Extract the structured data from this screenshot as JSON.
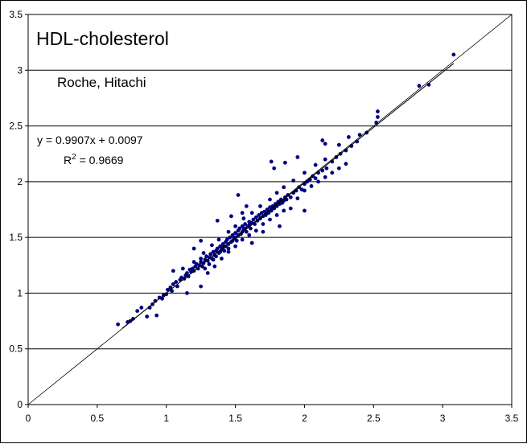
{
  "chart_data": {
    "type": "scatter",
    "title": "HDL-cholesterol",
    "subtitle": "Roche, Hitachi",
    "xlabel": "",
    "ylabel": "",
    "xlim": [
      0,
      3.5
    ],
    "ylim": [
      0,
      3.5
    ],
    "x_ticks": [
      "0",
      "0.5",
      "1",
      "1.5",
      "2",
      "2.5",
      "3",
      "3.5"
    ],
    "y_ticks": [
      "0",
      "0.5",
      "1",
      "1.5",
      "2",
      "2.5",
      "3",
      "3.5"
    ],
    "grid": "horizontal",
    "marker_color": "#000080",
    "trendline": {
      "equation": "y = 0.9907x + 0.0097",
      "r2_prefix": "R",
      "r2_exp": "2",
      "r2_value": " = 0.9669",
      "slope": 0.9907,
      "intercept": 0.0097,
      "x_range": [
        0.68,
        3.08
      ]
    },
    "identity_line": {
      "from": [
        0,
        0
      ],
      "to": [
        3.5,
        3.5
      ]
    },
    "series": [
      {
        "values": [
          [
            0.65,
            0.72
          ],
          [
            0.72,
            0.74
          ],
          [
            0.74,
            0.75
          ],
          [
            0.76,
            0.77
          ],
          [
            0.79,
            0.84
          ],
          [
            0.82,
            0.87
          ],
          [
            0.86,
            0.79
          ],
          [
            0.88,
            0.87
          ],
          [
            0.9,
            0.9
          ],
          [
            0.92,
            0.93
          ],
          [
            0.93,
            0.8
          ],
          [
            0.95,
            0.96
          ],
          [
            0.97,
            0.95
          ],
          [
            0.98,
            0.98
          ],
          [
            1.0,
            0.99
          ],
          [
            1.01,
            1.03
          ],
          [
            1.03,
            1.05
          ],
          [
            1.04,
            1.02
          ],
          [
            1.05,
            1.08
          ],
          [
            1.07,
            1.1
          ],
          [
            1.08,
            1.06
          ],
          [
            1.1,
            1.12
          ],
          [
            1.11,
            1.14
          ],
          [
            1.13,
            1.13
          ],
          [
            1.14,
            1.16
          ],
          [
            1.15,
            1.18
          ],
          [
            1.16,
            1.15
          ],
          [
            1.17,
            1.21
          ],
          [
            1.18,
            1.19
          ],
          [
            1.19,
            1.22
          ],
          [
            1.2,
            1.2
          ],
          [
            1.21,
            1.24
          ],
          [
            1.22,
            1.26
          ],
          [
            1.23,
            1.22
          ],
          [
            1.24,
            1.25
          ],
          [
            1.25,
            1.28
          ],
          [
            1.25,
            1.31
          ],
          [
            1.26,
            1.24
          ],
          [
            1.27,
            1.27
          ],
          [
            1.28,
            1.3
          ],
          [
            1.28,
            1.22
          ],
          [
            1.29,
            1.33
          ],
          [
            1.3,
            1.29
          ],
          [
            1.31,
            1.32
          ],
          [
            1.31,
            1.26
          ],
          [
            1.32,
            1.35
          ],
          [
            1.33,
            1.31
          ],
          [
            1.34,
            1.37
          ],
          [
            1.34,
            1.3
          ],
          [
            1.35,
            1.34
          ],
          [
            1.36,
            1.38
          ],
          [
            1.36,
            1.33
          ],
          [
            1.37,
            1.4
          ],
          [
            1.38,
            1.36
          ],
          [
            1.39,
            1.42
          ],
          [
            1.39,
            1.37
          ],
          [
            1.4,
            1.39
          ],
          [
            1.41,
            1.44
          ],
          [
            1.41,
            1.41
          ],
          [
            1.42,
            1.38
          ],
          [
            1.43,
            1.46
          ],
          [
            1.43,
            1.42
          ],
          [
            1.44,
            1.48
          ],
          [
            1.45,
            1.44
          ],
          [
            1.45,
            1.4
          ],
          [
            1.46,
            1.5
          ],
          [
            1.47,
            1.46
          ],
          [
            1.48,
            1.52
          ],
          [
            1.48,
            1.47
          ],
          [
            1.49,
            1.49
          ],
          [
            1.5,
            1.54
          ],
          [
            1.5,
            1.5
          ],
          [
            1.51,
            1.47
          ],
          [
            1.52,
            1.56
          ],
          [
            1.52,
            1.52
          ],
          [
            1.53,
            1.58
          ],
          [
            1.54,
            1.53
          ],
          [
            1.55,
            1.6
          ],
          [
            1.55,
            1.55
          ],
          [
            1.56,
            1.57
          ],
          [
            1.57,
            1.62
          ],
          [
            1.57,
            1.58
          ],
          [
            1.58,
            1.55
          ],
          [
            1.59,
            1.6
          ],
          [
            1.6,
            1.64
          ],
          [
            1.6,
            1.61
          ],
          [
            1.61,
            1.58
          ],
          [
            1.62,
            1.63
          ],
          [
            1.63,
            1.66
          ],
          [
            1.64,
            1.62
          ],
          [
            1.65,
            1.68
          ],
          [
            1.66,
            1.65
          ],
          [
            1.67,
            1.7
          ],
          [
            1.68,
            1.67
          ],
          [
            1.69,
            1.72
          ],
          [
            1.7,
            1.69
          ],
          [
            1.71,
            1.73
          ],
          [
            1.72,
            1.7
          ],
          [
            1.73,
            1.75
          ],
          [
            1.74,
            1.72
          ],
          [
            1.75,
            1.77
          ],
          [
            1.76,
            1.74
          ],
          [
            1.77,
            1.78
          ],
          [
            1.78,
            1.76
          ],
          [
            1.79,
            1.8
          ],
          [
            1.8,
            1.78
          ],
          [
            1.81,
            1.82
          ],
          [
            1.82,
            1.8
          ],
          [
            1.83,
            1.84
          ],
          [
            1.84,
            1.81
          ],
          [
            1.85,
            1.83
          ],
          [
            1.86,
            1.86
          ],
          [
            1.87,
            1.84
          ],
          [
            1.88,
            1.88
          ],
          [
            1.9,
            1.86
          ],
          [
            1.92,
            1.9
          ],
          [
            1.94,
            1.92
          ],
          [
            1.96,
            1.95
          ],
          [
            1.98,
            1.93
          ],
          [
            2.0,
            1.98
          ],
          [
            2.02,
            2.0
          ],
          [
            2.04,
            2.02
          ],
          [
            2.06,
            2.05
          ],
          [
            2.08,
            2.03
          ],
          [
            2.1,
            2.08
          ],
          [
            2.13,
            2.1
          ],
          [
            2.16,
            2.12
          ],
          [
            2.2,
            2.18
          ],
          [
            2.23,
            2.22
          ],
          [
            2.26,
            2.25
          ],
          [
            2.3,
            2.28
          ],
          [
            2.34,
            2.32
          ],
          [
            2.38,
            2.36
          ],
          [
            2.45,
            2.44
          ],
          [
            2.52,
            2.53
          ],
          [
            2.53,
            2.58
          ],
          [
            2.53,
            2.63
          ],
          [
            2.83,
            2.86
          ],
          [
            2.9,
            2.87
          ],
          [
            3.08,
            3.14
          ],
          [
            1.3,
            1.18
          ],
          [
            1.35,
            1.24
          ],
          [
            1.4,
            1.31
          ],
          [
            1.45,
            1.37
          ],
          [
            1.5,
            1.42
          ],
          [
            1.55,
            1.48
          ],
          [
            1.6,
            1.52
          ],
          [
            1.65,
            1.56
          ],
          [
            1.7,
            1.62
          ],
          [
            1.75,
            1.66
          ],
          [
            1.8,
            1.7
          ],
          [
            1.85,
            1.74
          ],
          [
            1.9,
            1.76
          ],
          [
            1.95,
            1.85
          ],
          [
            2.0,
            1.92
          ],
          [
            2.05,
            1.96
          ],
          [
            2.1,
            2.0
          ],
          [
            2.15,
            2.04
          ],
          [
            2.2,
            2.08
          ],
          [
            2.25,
            2.12
          ],
          [
            2.3,
            2.16
          ],
          [
            1.12,
            1.22
          ],
          [
            1.2,
            1.28
          ],
          [
            1.27,
            1.36
          ],
          [
            1.33,
            1.43
          ],
          [
            1.38,
            1.48
          ],
          [
            1.45,
            1.55
          ],
          [
            1.5,
            1.6
          ],
          [
            1.56,
            1.67
          ],
          [
            1.62,
            1.72
          ],
          [
            1.68,
            1.78
          ],
          [
            1.75,
            1.84
          ],
          [
            1.8,
            1.9
          ],
          [
            1.85,
            1.95
          ],
          [
            1.92,
            2.01
          ],
          [
            2.0,
            2.08
          ],
          [
            2.08,
            2.15
          ],
          [
            2.15,
            2.2
          ],
          [
            2.25,
            2.33
          ],
          [
            2.32,
            2.4
          ],
          [
            2.4,
            2.42
          ],
          [
            1.76,
            2.18
          ],
          [
            1.78,
            2.12
          ],
          [
            1.86,
            2.17
          ],
          [
            1.95,
            2.22
          ],
          [
            2.13,
            2.37
          ],
          [
            2.15,
            2.34
          ],
          [
            1.55,
            1.72
          ],
          [
            1.58,
            1.78
          ],
          [
            1.52,
            1.88
          ],
          [
            1.47,
            1.69
          ],
          [
            1.37,
            1.65
          ],
          [
            1.25,
            1.47
          ],
          [
            1.2,
            1.4
          ],
          [
            1.05,
            1.2
          ],
          [
            1.62,
            1.45
          ],
          [
            1.7,
            1.55
          ],
          [
            1.82,
            1.6
          ],
          [
            2.0,
            1.74
          ],
          [
            1.25,
            1.06
          ],
          [
            1.15,
            1.0
          ]
        ]
      }
    ]
  }
}
